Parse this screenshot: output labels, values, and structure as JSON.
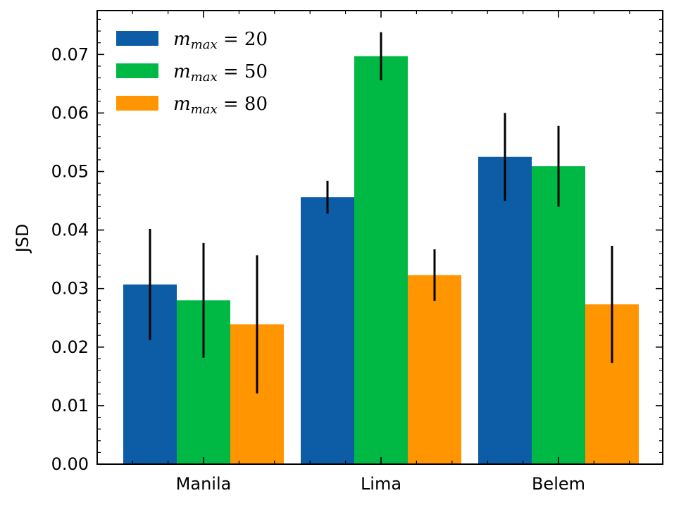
{
  "chart_data": {
    "type": "bar",
    "title": "",
    "xlabel": "",
    "ylabel": "JSD",
    "categories": [
      "Manila",
      "Lima",
      "Belem"
    ],
    "ylim": [
      0,
      0.0775
    ],
    "yticks": [
      "0.00",
      "0.01",
      "0.02",
      "0.03",
      "0.04",
      "0.05",
      "0.06",
      "0.07"
    ],
    "legend_position": "top-left",
    "series": [
      {
        "name": "m_max = 20",
        "legend_var": "m",
        "legend_sub": "max",
        "legend_rest": " = 20",
        "color": "#0C5DA5",
        "values": [
          0.0307,
          0.0456,
          0.0525
        ],
        "errors": [
          0.0095,
          0.0028,
          0.0075
        ]
      },
      {
        "name": "m_max = 50",
        "legend_var": "m",
        "legend_sub": "max",
        "legend_rest": " = 50",
        "color": "#00B945",
        "values": [
          0.028,
          0.0697,
          0.0509
        ],
        "errors": [
          0.0098,
          0.0041,
          0.0069
        ]
      },
      {
        "name": "m_max = 80",
        "legend_var": "m",
        "legend_sub": "max",
        "legend_rest": " = 80",
        "color": "#FF9500",
        "values": [
          0.0239,
          0.0323,
          0.0273
        ],
        "errors": [
          0.0118,
          0.0044,
          0.01
        ]
      }
    ]
  }
}
